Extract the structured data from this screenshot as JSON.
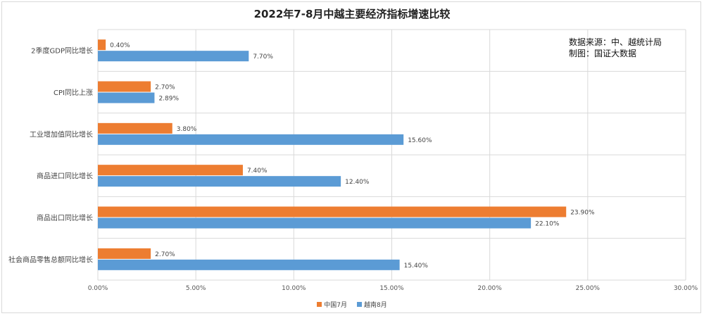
{
  "title": "2022年7-8月中越主要经济指标增速比较",
  "source_note": {
    "line1": "数据来源：中、越统计局",
    "line2": "制图：国证大数据"
  },
  "chart_data": {
    "type": "bar",
    "orientation": "horizontal",
    "title": "2022年7-8月中越主要经济指标增速比较",
    "categories": [
      "2季度GDP同比增长",
      "CPI同比上涨",
      "工业增加值同比增长",
      "商品进口同比增长",
      "商品出口同比增长",
      "社会商品零售总额同比增长"
    ],
    "series": [
      {
        "name": "中国7月",
        "color": "#ed7d31",
        "values": [
          0.4,
          2.7,
          3.8,
          7.4,
          23.9,
          2.7
        ],
        "labels": [
          "0.40%",
          "2.70%",
          "3.80%",
          "7.40%",
          "23.90%",
          "2.70%"
        ]
      },
      {
        "name": "越南8月",
        "color": "#5b9bd5",
        "values": [
          7.7,
          2.89,
          15.6,
          12.4,
          22.1,
          15.4
        ],
        "labels": [
          "7.70%",
          "2.89%",
          "15.60%",
          "12.40%",
          "22.10%",
          "15.40%"
        ]
      }
    ],
    "xlim": [
      0,
      30
    ],
    "xticks": [
      0,
      5,
      10,
      15,
      20,
      25,
      30
    ],
    "xtick_labels": [
      "0.00%",
      "5.00%",
      "10.00%",
      "15.00%",
      "20.00%",
      "25.00%",
      "30.00%"
    ],
    "grid": true,
    "legend_position": "bottom"
  }
}
